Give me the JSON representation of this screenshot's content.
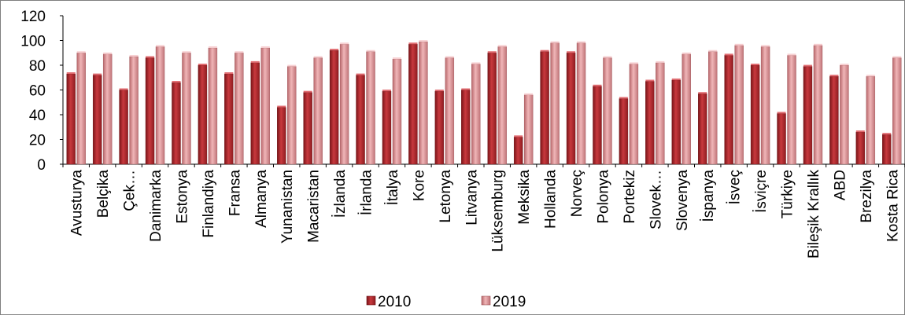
{
  "chart_data": {
    "type": "bar",
    "title": "",
    "xlabel": "",
    "ylabel": "",
    "ylim": [
      0,
      120
    ],
    "yticks": [
      "0",
      "20",
      "40",
      "60",
      "80",
      "100",
      "120"
    ],
    "grid": false,
    "legend_position": "bottom-center",
    "categories": [
      "Avusturya",
      "Belçika",
      "Çek…",
      "Danimarka",
      "Estonya",
      "Finlandiya",
      "Fransa",
      "Almanya",
      "Yunanistan",
      "Macaristan",
      "İzlanda",
      "İrlanda",
      "İtalya",
      "Kore",
      "Letonya",
      "Litvanya",
      "Lüksemburg",
      "Meksika",
      "Hollanda",
      "Norveç",
      "Polonya",
      "Portekiz",
      "Slovek…",
      "Slovenya",
      "İspanya",
      "İsveç",
      "İsviçre",
      "Türkiye",
      "Bileşik Krallık",
      "ABD",
      "Brezilya",
      "Kosta Rica"
    ],
    "series": [
      {
        "name": "2010",
        "color": "#b3282d",
        "values": [
          73,
          72,
          60,
          86,
          66,
          80,
          73,
          82,
          46,
          58,
          92,
          72,
          59,
          97,
          59,
          60,
          90,
          22,
          91,
          90,
          63,
          53,
          67,
          68,
          57,
          88,
          80,
          41,
          79,
          71,
          26,
          24
        ]
      },
      {
        "name": "2019",
        "color": "#d98c90",
        "values": [
          90,
          89,
          87,
          95,
          90,
          94,
          90,
          94,
          79,
          86,
          97,
          91,
          85,
          99,
          86,
          81,
          95,
          56,
          98,
          98,
          86,
          81,
          82,
          89,
          91,
          96,
          95,
          88,
          96,
          80,
          71,
          86
        ]
      }
    ]
  }
}
